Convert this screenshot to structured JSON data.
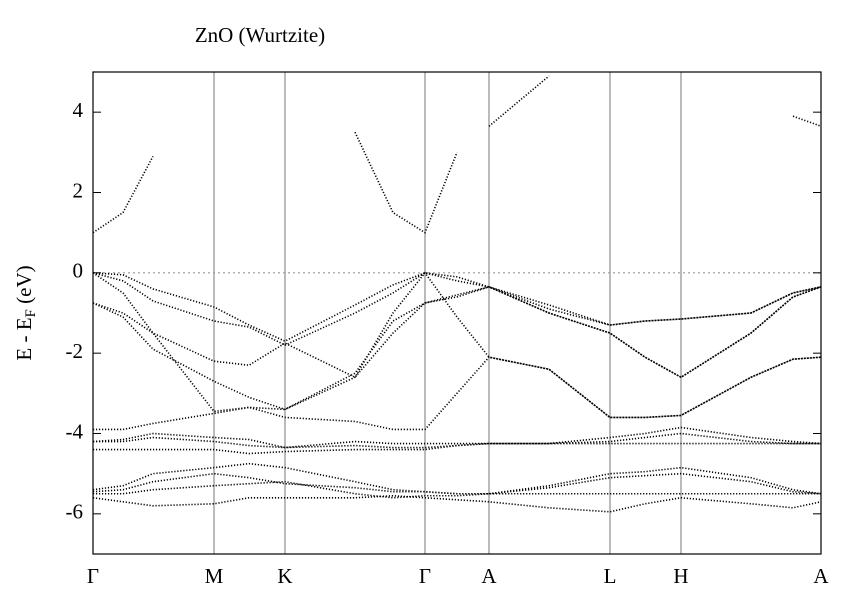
{
  "chart_data": {
    "type": "line",
    "title": "ZnO (Wurtzite)",
    "ylabel": {
      "text": "E - E",
      "subscript": "F",
      "suffix": " (eV)"
    },
    "x": [
      0,
      0.3,
      0.6,
      1.21,
      1.56,
      1.92,
      2.62,
      3.0,
      3.32,
      3.64,
      3.96,
      4.56,
      5.17,
      5.52,
      5.88,
      6.58,
      7.0,
      7.28
    ],
    "xlim": [
      0,
      7.28
    ],
    "xticks": [
      {
        "value": 0,
        "label": "Γ"
      },
      {
        "value": 1.21,
        "label": "M"
      },
      {
        "value": 1.92,
        "label": "K"
      },
      {
        "value": 3.32,
        "label": "Γ"
      },
      {
        "value": 3.96,
        "label": "A"
      },
      {
        "value": 5.17,
        "label": "L"
      },
      {
        "value": 5.88,
        "label": "H"
      },
      {
        "value": 7.28,
        "label": "A"
      }
    ],
    "ylim": [
      -7,
      5
    ],
    "yticks": [
      -6,
      -4,
      -2,
      0,
      2,
      4
    ],
    "xgrid": true,
    "hline": 0,
    "hline_color": "#999999",
    "series": [
      {
        "color": "#000000",
        "values": [
          1.0,
          1.5,
          2.9,
          null,
          null,
          null,
          3.5,
          1.5,
          1.0,
          3.0,
          null,
          null,
          null,
          null,
          null,
          null,
          null,
          null
        ]
      },
      {
        "color": "#000000",
        "values": [
          null,
          null,
          null,
          null,
          null,
          null,
          null,
          null,
          null,
          null,
          3.65,
          4.9,
          null,
          null,
          null,
          null,
          3.9,
          3.65
        ]
      },
      {
        "color": "#000000",
        "values": [
          0,
          -0.05,
          -0.4,
          -0.85,
          -1.3,
          -1.7,
          -0.8,
          -0.3,
          0,
          -0.1,
          -0.35,
          -0.9,
          -1.3,
          -1.2,
          -1.15,
          -1.0,
          -0.5,
          -0.35
        ]
      },
      {
        "color": "#000000",
        "values": [
          0,
          -0.2,
          -0.7,
          -1.2,
          -1.35,
          -1.8,
          -1.0,
          -0.5,
          0,
          -0.2,
          -0.35,
          -1.0,
          -1.5,
          -2.1,
          -2.6,
          -1.5,
          -0.6,
          -0.35
        ]
      },
      {
        "color": "#000000",
        "values": [
          -0.75,
          -1.0,
          -1.5,
          -2.2,
          -2.3,
          -1.75,
          -2.6,
          -1.5,
          -0.75,
          -0.55,
          -0.35,
          -0.8,
          -1.3,
          -1.2,
          -1.15,
          -1.0,
          -0.5,
          -0.35
        ]
      },
      {
        "color": "#000000",
        "values": [
          -0.75,
          -1.1,
          -1.9,
          -2.7,
          -3.1,
          -3.4,
          -2.5,
          -1.2,
          -0.75,
          -0.6,
          -0.35,
          -1.0,
          -1.5,
          -2.1,
          -2.6,
          -1.5,
          -0.6,
          -0.35
        ]
      },
      {
        "color": "#000000",
        "values": [
          0,
          -0.5,
          -1.5,
          -3.45,
          -3.35,
          -3.4,
          -2.6,
          -1.0,
          0,
          -1.1,
          -2.1,
          -2.4,
          -3.6,
          -3.6,
          -3.55,
          -2.6,
          -2.15,
          -2.1
        ]
      },
      {
        "color": "#000000",
        "values": [
          -3.9,
          -3.9,
          -3.75,
          -3.5,
          -3.35,
          -3.6,
          -3.7,
          -3.9,
          -3.9,
          -3.0,
          -2.1,
          -2.4,
          -3.6,
          -3.6,
          -3.55,
          -2.6,
          -2.15,
          -2.1
        ]
      },
      {
        "color": "#000000",
        "values": [
          -4.2,
          -4.15,
          -4.0,
          -4.1,
          -4.15,
          -4.35,
          -4.2,
          -4.25,
          -4.25,
          -4.25,
          -4.25,
          -4.25,
          -4.1,
          -4.0,
          -3.85,
          -4.1,
          -4.2,
          -4.25
        ]
      },
      {
        "color": "#000000",
        "values": [
          -4.2,
          -4.2,
          -4.1,
          -4.2,
          -4.3,
          -4.35,
          -4.3,
          -4.35,
          -4.35,
          -4.3,
          -4.25,
          -4.25,
          -4.2,
          -4.1,
          -4.0,
          -4.2,
          -4.25,
          -4.25
        ]
      },
      {
        "color": "#000000",
        "values": [
          -4.4,
          -4.4,
          -4.4,
          -4.4,
          -4.5,
          -4.45,
          -4.4,
          -4.4,
          -4.4,
          -4.3,
          -4.25,
          -4.25,
          -4.25,
          -4.25,
          -4.25,
          -4.25,
          -4.25,
          -4.25
        ]
      },
      {
        "color": "#000000",
        "values": [
          -5.4,
          -5.3,
          -5.0,
          -4.85,
          -4.75,
          -4.85,
          -5.2,
          -5.4,
          -5.45,
          -5.5,
          -5.5,
          -5.3,
          -5.0,
          -4.95,
          -4.85,
          -5.1,
          -5.4,
          -5.5
        ]
      },
      {
        "color": "#000000",
        "values": [
          -5.45,
          -5.4,
          -5.2,
          -5.0,
          -5.1,
          -5.25,
          -5.35,
          -5.45,
          -5.45,
          -5.5,
          -5.5,
          -5.35,
          -5.1,
          -5.05,
          -5.0,
          -5.2,
          -5.45,
          -5.5
        ]
      },
      {
        "color": "#000000",
        "values": [
          -5.5,
          -5.5,
          -5.4,
          -5.3,
          -5.25,
          -5.2,
          -5.5,
          -5.6,
          -5.55,
          -5.55,
          -5.5,
          -5.5,
          -5.5,
          -5.5,
          -5.5,
          -5.5,
          -5.5,
          -5.5
        ]
      },
      {
        "color": "#000000",
        "values": [
          -5.6,
          -5.7,
          -5.8,
          -5.75,
          -5.6,
          -5.6,
          -5.6,
          -5.55,
          -5.6,
          -5.65,
          -5.7,
          -5.85,
          -5.95,
          -5.75,
          -5.6,
          -5.75,
          -5.85,
          -5.7
        ]
      }
    ]
  }
}
